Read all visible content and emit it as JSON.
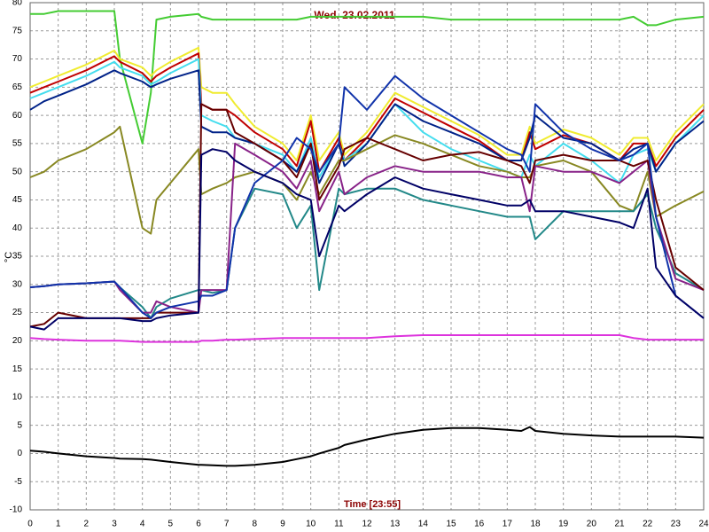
{
  "chart_data": {
    "type": "line",
    "title": "Wed. 23.02.2011",
    "xlabel": "Time [23:55]",
    "ylabel": "°C",
    "x": [
      0,
      0.5,
      1,
      2,
      3,
      3.2,
      4,
      4.3,
      4.5,
      5,
      6,
      6.1,
      6.5,
      7,
      7.3,
      8,
      9,
      9.5,
      10,
      10.3,
      11,
      11.2,
      12,
      13,
      14,
      15,
      16,
      17,
      17.5,
      17.8,
      18,
      19,
      20,
      21,
      21.5,
      22,
      22.3,
      23,
      24
    ],
    "xlim": [
      0,
      24
    ],
    "ylim": [
      -10,
      80
    ],
    "xticks": [
      0,
      1,
      2,
      3,
      4,
      5,
      6,
      7,
      8,
      9,
      10,
      11,
      12,
      13,
      14,
      15,
      16,
      17,
      18,
      19,
      20,
      21,
      22,
      23,
      24
    ],
    "yticks": [
      -10,
      -5,
      0,
      5,
      10,
      15,
      20,
      25,
      30,
      35,
      40,
      45,
      50,
      55,
      60,
      65,
      70,
      75,
      80
    ],
    "grid": true,
    "series": [
      {
        "color": "#44cc33",
        "values": [
          78,
          78,
          78.5,
          78.5,
          78.5,
          70,
          55,
          64,
          77,
          77.5,
          78,
          77.5,
          77,
          77,
          77,
          77,
          77,
          77,
          77.5,
          77.5,
          77.5,
          77.5,
          77.5,
          77.5,
          77.5,
          77,
          77,
          77,
          77,
          77,
          77,
          77,
          77,
          77,
          77.5,
          76,
          76,
          77,
          77.5
        ]
      },
      {
        "color": "#f0ec30",
        "values": [
          65,
          66,
          67,
          69,
          71.5,
          70,
          68.5,
          67,
          68,
          69.5,
          72,
          65,
          64,
          64,
          62,
          58,
          55,
          52,
          60,
          52,
          57,
          53,
          57,
          64,
          61.5,
          59,
          56.5,
          53,
          53,
          58,
          55,
          57.5,
          56,
          53,
          56,
          56,
          52,
          57,
          62
        ]
      },
      {
        "color": "#c00000",
        "values": [
          64,
          65,
          66,
          68,
          70.5,
          69.5,
          67.5,
          66,
          67,
          68.5,
          71,
          62,
          61,
          61,
          60,
          57,
          54,
          51,
          59,
          50,
          56,
          52,
          56,
          63,
          60.5,
          58,
          55.5,
          52,
          52,
          57,
          54,
          56.5,
          55,
          52,
          55,
          55,
          51,
          56,
          61
        ]
      },
      {
        "color": "#44ddee",
        "values": [
          63,
          64,
          65,
          67,
          69.5,
          68.5,
          67,
          65.5,
          66,
          67.5,
          70,
          60,
          59,
          58,
          56,
          55,
          53,
          50,
          56,
          49,
          55,
          52,
          55,
          62,
          57,
          54,
          52,
          50,
          49,
          53,
          51,
          55,
          52,
          48,
          53,
          54,
          50,
          55,
          60
        ]
      },
      {
        "color": "#002288",
        "values": [
          61,
          62.5,
          63.5,
          65.5,
          68,
          67.5,
          66,
          65,
          65.5,
          66.5,
          68,
          58,
          57,
          57,
          56,
          55,
          52,
          50,
          55,
          48,
          55,
          51,
          55,
          62,
          59,
          57,
          55,
          52,
          52,
          56,
          60,
          56,
          55,
          52,
          54,
          55,
          50,
          55,
          59
        ]
      },
      {
        "color": "#888822",
        "values": [
          49,
          50,
          52,
          54,
          57,
          58,
          40,
          39,
          45,
          48,
          54,
          46,
          47,
          48,
          49,
          50,
          48,
          45,
          50,
          46,
          52,
          52,
          54,
          56.5,
          55,
          53,
          51,
          50,
          49,
          49,
          51,
          52,
          50,
          44,
          43,
          50,
          42,
          44,
          46.5
        ]
      },
      {
        "color": "#dd33dd",
        "values": [
          20.5,
          20.3,
          20.2,
          20,
          20,
          20,
          19.8,
          19.8,
          19.8,
          19.8,
          19.8,
          20,
          20,
          20.2,
          20.2,
          20.3,
          20.5,
          20.5,
          20.5,
          20.5,
          20.5,
          20.5,
          20.5,
          20.8,
          21,
          21,
          21,
          21,
          21,
          21,
          21,
          21,
          21,
          21,
          20.5,
          20.2,
          20.2,
          20.2,
          20.2
        ]
      },
      {
        "color": "#000000",
        "values": [
          0.5,
          0.3,
          0,
          -0.5,
          -0.8,
          -0.9,
          -1,
          -1.1,
          -1.2,
          -1.5,
          -2,
          -2,
          -2.1,
          -2.2,
          -2.2,
          -2,
          -1.5,
          -1,
          -0.5,
          0,
          1,
          1.5,
          2.5,
          3.5,
          4.2,
          4.5,
          4.5,
          4.2,
          4,
          4.7,
          4,
          3.5,
          3.2,
          3,
          3,
          3,
          3,
          3,
          2.8
        ]
      },
      {
        "color": "#228888",
        "values": [
          29.5,
          29.7,
          30,
          30.2,
          30.5,
          29.5,
          26,
          24,
          26,
          27.5,
          29,
          29,
          28.5,
          29,
          40,
          47,
          46,
          40,
          44,
          29,
          47,
          46,
          47,
          47,
          45,
          44,
          43,
          42,
          42,
          42,
          38,
          43,
          43,
          43,
          43,
          46,
          40,
          32,
          29
        ]
      },
      {
        "color": "#882288",
        "values": [
          29.5,
          29.7,
          30,
          30.2,
          30.5,
          29,
          25,
          25,
          27,
          26,
          25,
          29,
          29,
          29,
          55,
          53,
          50,
          47,
          52,
          43,
          50,
          46,
          49,
          51,
          50,
          50,
          50,
          49,
          49,
          43,
          51,
          50,
          50,
          48,
          50,
          52,
          42,
          31,
          29
        ]
      },
      {
        "color": "#660000",
        "values": [
          22.5,
          23,
          25,
          24,
          24,
          24,
          24,
          24,
          25,
          25,
          25,
          62,
          61,
          61,
          57,
          55,
          52,
          49,
          55,
          45,
          51,
          54,
          56,
          54,
          52,
          53,
          53.5,
          52,
          51,
          48,
          52,
          53,
          52,
          52,
          51,
          52,
          45,
          33,
          29
        ]
      },
      {
        "color": "#1133aa",
        "values": [
          29.5,
          29.7,
          30,
          30.2,
          30.5,
          29.5,
          25,
          24,
          25,
          26,
          27,
          28,
          28,
          29,
          40,
          48,
          52,
          56,
          54,
          50,
          55,
          65,
          61,
          67,
          63,
          60,
          57,
          54,
          53,
          50,
          62,
          57,
          54,
          52,
          53,
          55,
          42,
          28,
          24
        ]
      },
      {
        "color": "#000066",
        "values": [
          22.5,
          22,
          24,
          24,
          24,
          24,
          23.5,
          23.5,
          24,
          24.5,
          25,
          53,
          54,
          53.5,
          52,
          50,
          48,
          46,
          45,
          35,
          44,
          43,
          46,
          49,
          47,
          46,
          45,
          44,
          44,
          45,
          43,
          43,
          42,
          41,
          40,
          47,
          33,
          28,
          24
        ]
      }
    ]
  }
}
